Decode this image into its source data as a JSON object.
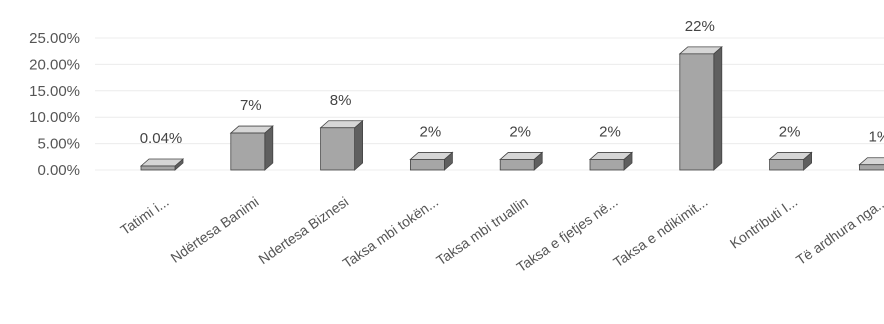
{
  "chart_data": {
    "type": "bar",
    "title": "",
    "xlabel": "",
    "ylabel": "",
    "ylim": [
      0,
      25
    ],
    "y_ticks": [
      "0.00%",
      "5.00%",
      "10.00%",
      "15.00%",
      "20.00%",
      "25.00%"
    ],
    "categories": [
      "Tatimi i...",
      "Ndërtesa Banimi",
      "Ndertesa Biznesi",
      "Taksa mbi tokën...",
      "Taksa mbi truallin",
      "Taksa e fjetjes në...",
      "Taksa e ndikimit...",
      "Kontributi I...",
      "Të ardhura nga..."
    ],
    "values": [
      0.04,
      7,
      8,
      2,
      2,
      2,
      22,
      2,
      1
    ],
    "data_labels": [
      "0.04%",
      "7%",
      "8%",
      "2%",
      "2%",
      "2%",
      "22%",
      "2%",
      "1%"
    ],
    "grid": true,
    "legend": "none",
    "colors": {
      "bar_front": "#a6a6a6",
      "bar_side": "#5f5f5f",
      "bar_top": "#d6d6d6"
    }
  }
}
